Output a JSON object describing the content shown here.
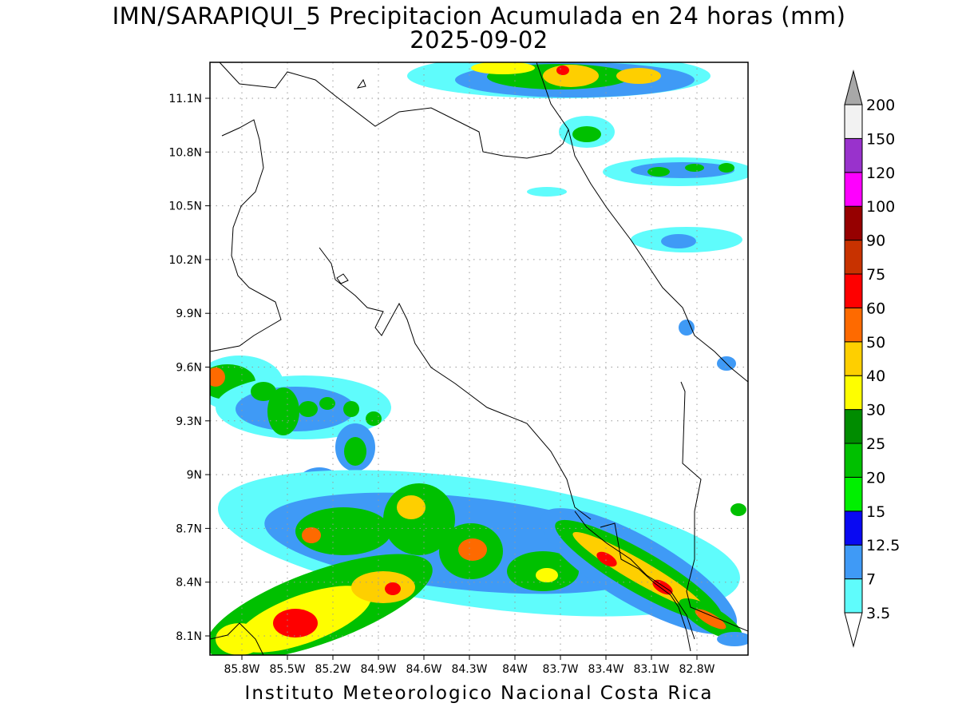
{
  "header": {
    "title_line1": "IMN/SARAPIQUI_5 Precipitacion Acumulada en 24 horas (mm)",
    "title_line2": "2025-09-02"
  },
  "footer": {
    "credit": "Instituto Meteorologico Nacional Costa Rica"
  },
  "map": {
    "lon_ticks": [
      "85.8W",
      "85.5W",
      "85.2W",
      "84.9W",
      "84.6W",
      "84.3W",
      "84W",
      "83.7W",
      "83.4W",
      "83.1W",
      "82.8W"
    ],
    "lat_ticks": [
      "11.1N",
      "10.8N",
      "10.5N",
      "10.2N",
      "9.9N",
      "9.6N",
      "9.3N",
      "9N",
      "8.7N",
      "8.4N",
      "8.1N"
    ],
    "grid": "dotted"
  },
  "colorbar": {
    "colors": {
      "c3_5": "#5ffcfc",
      "c7": "#3f9af6",
      "c12_5": "#0909f2",
      "c15": "#00f000",
      "c20": "#00c000",
      "c25": "#008c00",
      "c30": "#fefe00",
      "c40": "#fecf00",
      "c50": "#fe6a00",
      "c60": "#fe0000",
      "c75": "#c83200",
      "c90": "#960000",
      "c100": "#fe00fe",
      "c120": "#9932cc",
      "c150": "#f2f2f2",
      "c200": "#a8a8a8"
    },
    "levels": [
      "200",
      "150",
      "120",
      "100",
      "90",
      "75",
      "60",
      "50",
      "40",
      "30",
      "25",
      "20",
      "15",
      "12.5",
      "7",
      "3.5"
    ]
  }
}
